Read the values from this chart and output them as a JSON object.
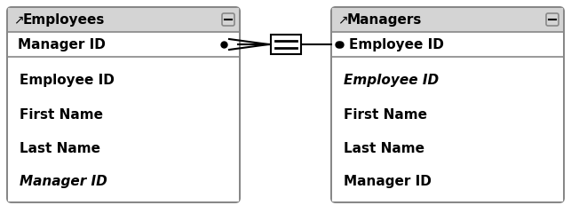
{
  "bg_color": "#ffffff",
  "header_fill": "#d4d4d4",
  "key_fill": "#ffffff",
  "body_fill": "#ffffff",
  "border_color": "#888888",
  "line_color": "#000000",
  "text_color": "#000000",
  "tables": [
    {
      "title": "Employees",
      "key_field": "Manager ID",
      "fields": [
        "Employee ID",
        "First Name",
        "Last Name",
        "Manager ID"
      ],
      "fields_italic": [
        false,
        false,
        false,
        true
      ],
      "dot_on_right": true
    },
    {
      "title": "Managers",
      "key_field": "Employee ID",
      "fields": [
        "Employee ID",
        "First Name",
        "Last Name",
        "Manager ID"
      ],
      "fields_italic": [
        true,
        false,
        false,
        false
      ],
      "dot_on_right": false
    }
  ]
}
